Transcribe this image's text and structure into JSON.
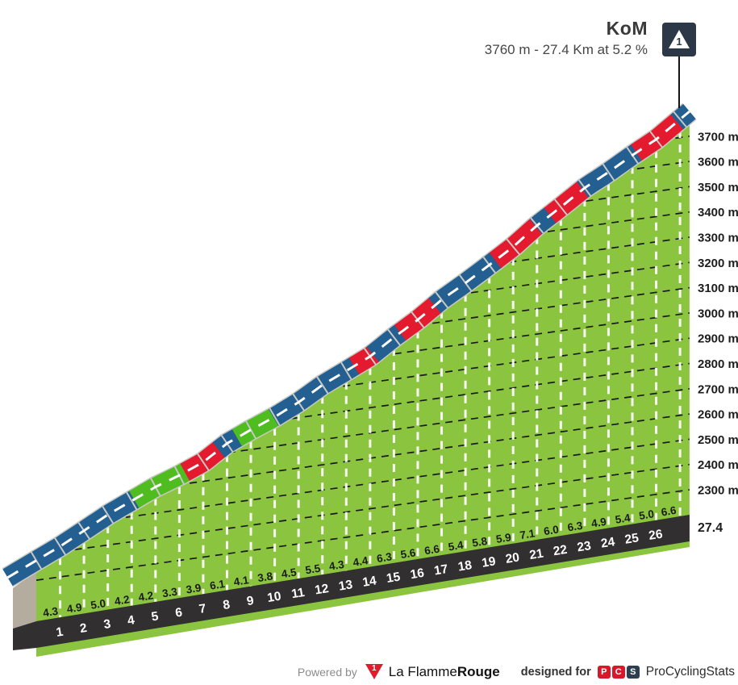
{
  "header": {
    "title": "KoM",
    "subtitle": "3760 m - 27.4 Km at 5.2 %",
    "marker_category": "1"
  },
  "chart_data": {
    "type": "area",
    "title": "KoM",
    "subtitle": "3760 m - 27.4 Km at 5.2 %",
    "summit": {
      "label": "KoM",
      "elevation_m": 3760,
      "distance_km": 27.4,
      "avg_gradient_pct": 5.2,
      "category": "1"
    },
    "x_axis": {
      "unit": "km",
      "ticks": [
        1,
        2,
        3,
        4,
        5,
        6,
        7,
        8,
        9,
        10,
        11,
        12,
        13,
        14,
        15,
        16,
        17,
        18,
        19,
        20,
        21,
        22,
        23,
        24,
        25,
        26
      ],
      "end_km": 27.4,
      "end_label": "27.4"
    },
    "y_axis": {
      "unit": "m",
      "ticks": [
        3700,
        3600,
        3500,
        3400,
        3300,
        3200,
        3100,
        3000,
        2900,
        2800,
        2700,
        2600,
        2500,
        2400,
        2300
      ]
    },
    "gradient_labels_pct": [
      "4.3",
      "4.9",
      "5.0",
      "4.2",
      "4.2",
      "3.3",
      "3.9",
      "6.1",
      "4.1",
      "3.8",
      "4.5",
      "5.5",
      "4.3",
      "4.4",
      "6.3",
      "5.6",
      "6.6",
      "5.4",
      "5.8",
      "5.9",
      "7.1",
      "6.0",
      "6.3",
      "4.9",
      "5.4",
      "5.0",
      "6.6"
    ],
    "road_color_segments": [
      {
        "from_km": -1.2,
        "to_km": 4.13,
        "color": "blue"
      },
      {
        "from_km": 4.13,
        "to_km": 6.26,
        "color": "green"
      },
      {
        "from_km": 6.26,
        "to_km": 7.68,
        "color": "red"
      },
      {
        "from_km": 7.68,
        "to_km": 8.45,
        "color": "blue"
      },
      {
        "from_km": 8.45,
        "to_km": 9.98,
        "color": "green"
      },
      {
        "from_km": 9.98,
        "to_km": 13.36,
        "color": "blue"
      },
      {
        "from_km": 13.36,
        "to_km": 14.14,
        "color": "red"
      },
      {
        "from_km": 14.14,
        "to_km": 15.29,
        "color": "blue"
      },
      {
        "from_km": 15.29,
        "to_km": 16.74,
        "color": "red"
      },
      {
        "from_km": 16.74,
        "to_km": 19.28,
        "color": "blue"
      },
      {
        "from_km": 19.28,
        "to_km": 20.98,
        "color": "red"
      },
      {
        "from_km": 20.98,
        "to_km": 21.58,
        "color": "blue"
      },
      {
        "from_km": 21.58,
        "to_km": 22.94,
        "color": "red"
      },
      {
        "from_km": 22.94,
        "to_km": 25.2,
        "color": "blue"
      },
      {
        "from_km": 25.2,
        "to_km": 26.9,
        "color": "red"
      },
      {
        "from_km": 26.9,
        "to_km": 27.4,
        "color": "blue"
      }
    ],
    "colors": {
      "face_green": "#8bc53f",
      "road_green": "#4fbc20",
      "road_blue": "#235f90",
      "road_red": "#e41a2e",
      "road_casing": "#c7c8c4",
      "band_black": "#312f30",
      "side_face_grey": "#b4ac9f",
      "marker_bg": "#2c3848"
    }
  },
  "footer": {
    "powered_by": "Powered by",
    "lfr_digit": "1",
    "lfr_name_regular": "La Flamme",
    "lfr_name_bold": "Rouge",
    "designed_for": "designed for",
    "pcs_letters": [
      "P",
      "C",
      "S"
    ],
    "pcs_name": "ProCyclingStats"
  }
}
